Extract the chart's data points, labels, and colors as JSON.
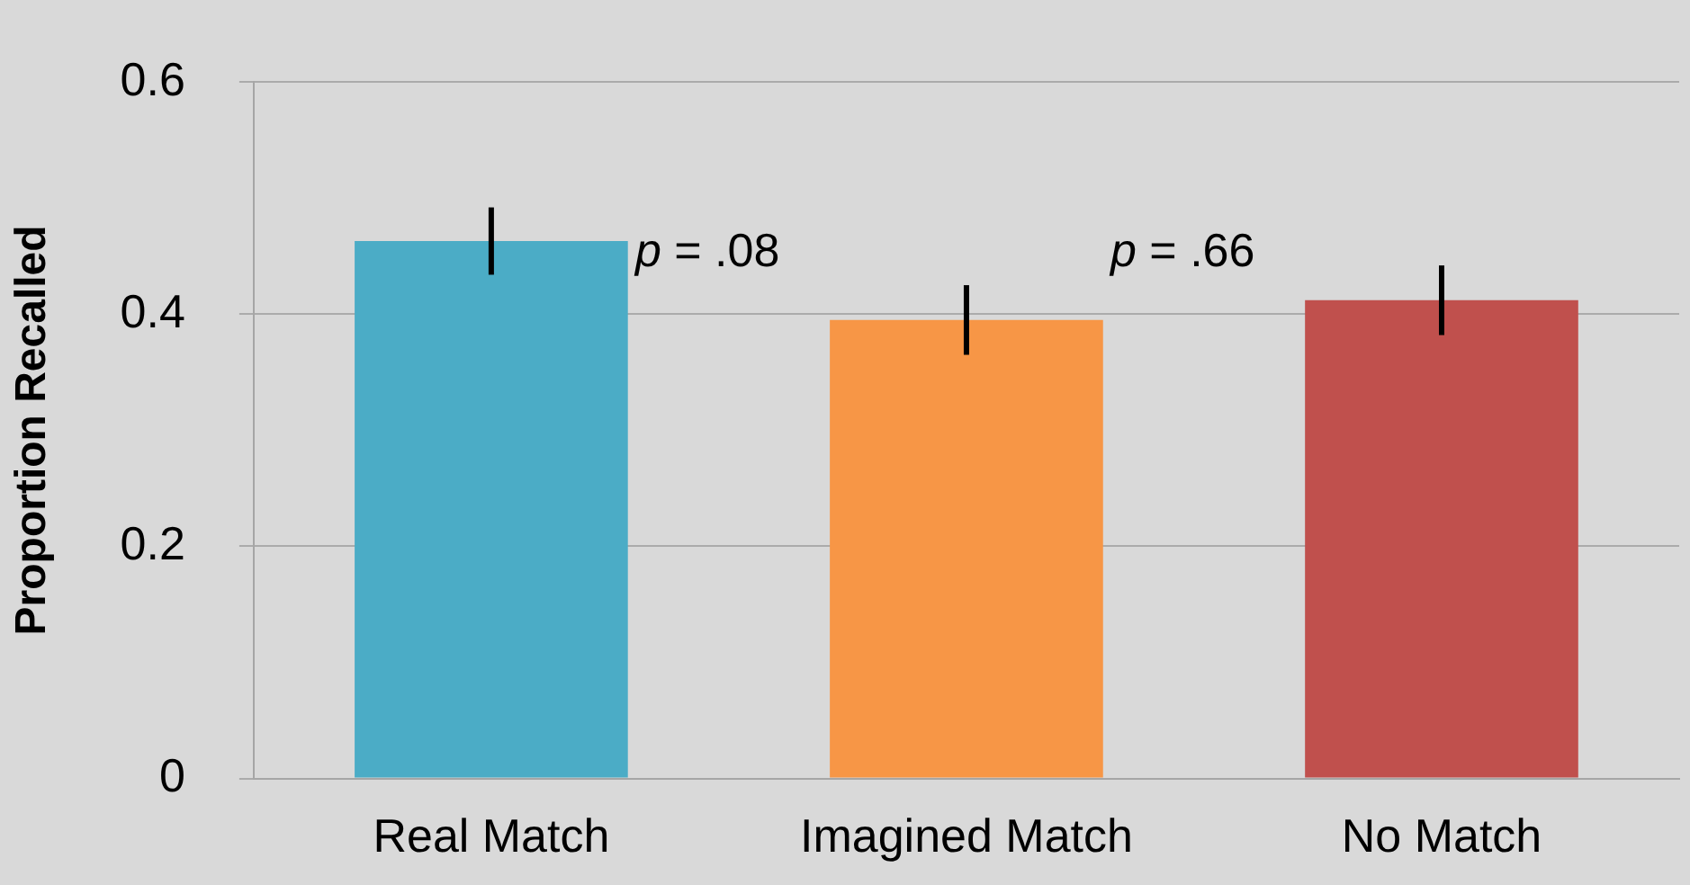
{
  "chart_data": {
    "type": "bar",
    "ylabel": "Proportion Recalled",
    "categories": [
      "Real Match",
      "Imagined Match",
      "No Match"
    ],
    "values": [
      0.463,
      0.395,
      0.412
    ],
    "errors": [
      0.029,
      0.03,
      0.03
    ],
    "colors": [
      "#4bacc6",
      "#f79646",
      "#c0504d"
    ],
    "ylim": [
      0,
      0.6
    ],
    "yticks": [
      {
        "value": 0,
        "label": "0"
      },
      0.2,
      0.4,
      0.6
    ],
    "grid": "y",
    "legend": false,
    "annotations": [
      "p = .08",
      "p = .66"
    ]
  }
}
